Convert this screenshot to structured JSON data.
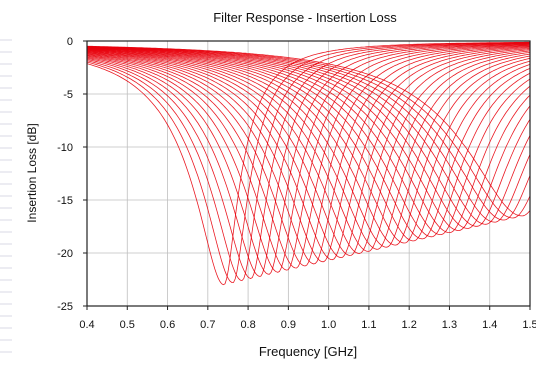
{
  "chart_data": {
    "type": "line",
    "title": "Filter Response - Insertion Loss",
    "xlabel": "Frequency [GHz]",
    "ylabel": "Insertion Loss [dB]",
    "xlim": [
      0.4,
      1.5
    ],
    "ylim": [
      -25,
      0
    ],
    "x_ticks": [
      "0.4",
      "0.5",
      "0.6",
      "0.7",
      "0.8",
      "0.9",
      "1.0",
      "1.1",
      "1.2",
      "1.3",
      "1.4",
      "1.5"
    ],
    "y_ticks": [
      "0",
      "-5",
      "-10",
      "-15",
      "-20",
      "-25"
    ],
    "grid": true,
    "line_color": "#e8000b",
    "sweep": {
      "curve_count": 34,
      "first_resonance_ghz": 0.74,
      "last_resonance_ghz": 1.48,
      "deepest_loss_db": -23.0,
      "shallowest_loss_db": -16.5
    }
  }
}
